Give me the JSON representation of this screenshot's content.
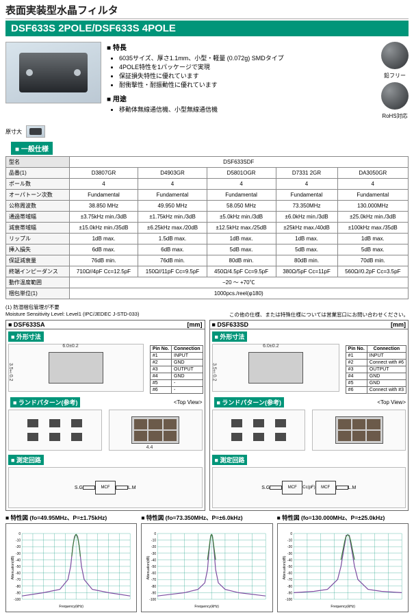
{
  "header": {
    "title_jp": "表面実装型水晶フィルタ",
    "product_bar": "DSF633S 2POLE/DSF633S 4POLE"
  },
  "features": {
    "heading": "■ 特長",
    "items": [
      "6035サイズ、厚さ1.1mm、小型・軽量 (0.072g) SMDタイプ",
      "4POLE特性を1パッケージで実現",
      "保証損失特性に優れています",
      "耐衝撃性・耐振動性に優れています"
    ]
  },
  "applications": {
    "heading": "■ 用途",
    "items": [
      "移動体無線通信機、小型無線通信機"
    ]
  },
  "icons": {
    "leadfree": "鉛フリー",
    "rohs": "RoHS対応"
  },
  "size_ref": "原寸大",
  "spec_section": "■ 一般仕様",
  "spec_table": {
    "model_row_label": "型名",
    "model_span": "DSF633SDF",
    "rows": [
      {
        "label": "品番(1)",
        "cells": [
          "D3807GR",
          "D4903GR",
          "D5801OGR",
          "D7331 2GR",
          "DA3050GR"
        ]
      },
      {
        "label": "ポール数",
        "cells": [
          "4",
          "4",
          "4",
          "4",
          "4"
        ]
      },
      {
        "label": "オーパトーン次数",
        "cells": [
          "Fundamental",
          "Fundamental",
          "Fundamental",
          "Fundamental",
          "Fundamental"
        ]
      },
      {
        "label": "公称周波数",
        "cells": [
          "38.850 MHz",
          "49.950 MHz",
          "58.050 MHz",
          "73.350MHz",
          "130.000MHz"
        ]
      },
      {
        "label": "通過帯域幅",
        "cells": [
          "±3.75kHz min./3dB",
          "±1.75kHz min./3dB",
          "±5.0kHz min./3dB",
          "±6.0kHz min./3dB",
          "±25.0kHz min./3dB"
        ]
      },
      {
        "label": "減衰帯域幅",
        "cells": [
          "±15.0kHz min./35dB",
          "±6.25kHz max./20dB",
          "±12.5kHz max./25dB",
          "±25kHz max./40dB",
          "±100kHz max./35dB"
        ]
      },
      {
        "label": "リップル",
        "cells": [
          "1dB max.",
          "1.5dB max.",
          "1dB max.",
          "1dB max.",
          "1dB max."
        ]
      },
      {
        "label": "挿入損失",
        "cells": [
          "6dB max.",
          "6dB max.",
          "5dB max.",
          "5dB max.",
          "5dB max."
        ]
      },
      {
        "label": "保証減衰量",
        "cells": [
          "76dB min.",
          "76dB min.",
          "80dB min.",
          "80dB min.",
          "70dB min."
        ]
      },
      {
        "label": "終端インピーダンス",
        "cells": [
          "710Ω//4pF Cc=12.5pF",
          "150Ω//11pF Cc=9.5pF",
          "450Ω/4.5pF Cc=9.5pF",
          "380Ω/5pF Cc=11pF",
          "560Ω//0.2pF Cc=3.5pF"
        ]
      },
      {
        "label": "動作温度範囲",
        "cells_merged": "−20 ～ +70℃"
      },
      {
        "label": "梱包単位(1)",
        "cells_merged": "1000pcs./reel(φ180)"
      }
    ]
  },
  "notes": {
    "n1": "(1) 防湿梱包管理が不要",
    "n2": "Moisture Sensitivity Level: Level1 (IPC/JEDEC J-STD-033)",
    "n3": "この他の仕様、または特殊仕様については営業窓口にお問い合わせください。"
  },
  "pkg": {
    "sa": {
      "name": "■ DSF633SA",
      "unit": "[mm]"
    },
    "sd": {
      "name": "■ DSF633SD",
      "unit": "[mm]"
    },
    "outline": "■ 外形寸法",
    "land": "■ ランドパターン(参考)",
    "topview": "<Top View>",
    "meas": "■ 測定回路",
    "dims": {
      "w": "6.0±0.2",
      "h": "3.5±0.2",
      "t": "1.1±0.2",
      "pw": "1.4",
      "ph": "0.9",
      "pg": "4.4"
    },
    "chip_sa": "4081SAR1\\nKDS  701",
    "chip_sd": "3880 7GR1\\nKDS  701",
    "pins_sa": [
      [
        "#1",
        "INPUT"
      ],
      [
        "#2",
        "GND"
      ],
      [
        "#3",
        "OUTPUT"
      ],
      [
        "#4",
        "GND"
      ],
      [
        "#5",
        "-"
      ],
      [
        "#6",
        "-"
      ]
    ],
    "pins_sd": [
      [
        "#1",
        "INPUT"
      ],
      [
        "#2",
        "Connect with #6"
      ],
      [
        "#3",
        "OUTPUT"
      ],
      [
        "#4",
        "GND"
      ],
      [
        "#5",
        "GND"
      ],
      [
        "#6",
        "Connect with #3"
      ]
    ],
    "pinhdr": [
      "Pin No.",
      "Connection"
    ],
    "land_sd_notes": [
      "Connect GND",
      "Coupling Capacitor"
    ],
    "circuit_labels": {
      "mcf": "MCF",
      "sg": "S.G",
      "rs": "R(=50)",
      "ro": "R(Ω)",
      "co": "Co(pF)",
      "lm": "L.M",
      "fifty": "50Ω",
      "cc": "Cc(pF)"
    }
  },
  "charts": {
    "heading": "■ 特性図",
    "ylabel": "Attenuation(dB)",
    "xlabel": "Frequency(kHz)",
    "items": [
      {
        "title": "(fo=49.95MHz、P=±1.75kHz)",
        "subtitle": "<DSF633SDF 49.95MHz D4903GR>",
        "xrange": [
          -100,
          100
        ],
        "xstep": 10,
        "yrange": [
          -100,
          0
        ],
        "ystep": 10,
        "seriesA": [
          [
            -100,
            -95
          ],
          [
            -60,
            -90
          ],
          [
            -30,
            -85
          ],
          [
            -15,
            -70
          ],
          [
            -10,
            -50
          ],
          [
            -6,
            -20
          ],
          [
            -3,
            -5
          ],
          [
            -1.75,
            -3
          ],
          [
            0,
            -2
          ],
          [
            1.75,
            -3
          ],
          [
            3,
            -5
          ],
          [
            6,
            -20
          ],
          [
            10,
            -50
          ],
          [
            15,
            -70
          ],
          [
            30,
            -85
          ],
          [
            60,
            -90
          ],
          [
            100,
            -95
          ]
        ],
        "seriesB": [
          [
            -8,
            -35
          ],
          [
            -6,
            -20
          ],
          [
            -4,
            -10
          ],
          [
            -2,
            -4
          ],
          [
            -1,
            -2
          ],
          [
            0,
            -1.5
          ],
          [
            1,
            -2
          ],
          [
            2,
            -4
          ],
          [
            4,
            -10
          ],
          [
            6,
            -20
          ],
          [
            8,
            -35
          ]
        ],
        "colorA": "#7a4aa0",
        "colorB": "#3a7a3a",
        "grid": "#009579",
        "stroke_w": 1.2
      },
      {
        "title": "(fo=73.350MHz、P=±6.0kHz)",
        "subtitle": "<DSF633SDF 73.350MHz D73312GR>",
        "xrange": [
          -400,
          400
        ],
        "xstep": 50,
        "yrange": [
          -100,
          0
        ],
        "ystep": 10,
        "seriesA": [
          [
            -400,
            -95
          ],
          [
            -200,
            -90
          ],
          [
            -100,
            -85
          ],
          [
            -50,
            -75
          ],
          [
            -30,
            -55
          ],
          [
            -20,
            -30
          ],
          [
            -10,
            -10
          ],
          [
            -6,
            -3
          ],
          [
            0,
            -2
          ],
          [
            6,
            -3
          ],
          [
            10,
            -10
          ],
          [
            20,
            -30
          ],
          [
            30,
            -55
          ],
          [
            50,
            -75
          ],
          [
            100,
            -85
          ],
          [
            200,
            -90
          ],
          [
            400,
            -95
          ]
        ],
        "seriesB": [
          [
            -30,
            -40
          ],
          [
            -20,
            -25
          ],
          [
            -12,
            -12
          ],
          [
            -7,
            -5
          ],
          [
            -3,
            -2
          ],
          [
            0,
            -1.5
          ],
          [
            3,
            -2
          ],
          [
            7,
            -5
          ],
          [
            12,
            -12
          ],
          [
            20,
            -25
          ],
          [
            30,
            -40
          ]
        ],
        "colorA": "#7a4aa0",
        "colorB": "#3a7a3a",
        "grid": "#009579",
        "stroke_w": 1.2
      },
      {
        "title": "(fo=130.000MHz、P=±25.0kHz)",
        "subtitle": "<DSF633SDF 130MHz DA3050GR>",
        "xrange": [
          -800,
          800
        ],
        "xstep": 100,
        "yrange": [
          -100,
          0
        ],
        "ystep": 10,
        "seriesA": [
          [
            -800,
            -90
          ],
          [
            -500,
            -88
          ],
          [
            -300,
            -85
          ],
          [
            -150,
            -70
          ],
          [
            -100,
            -50
          ],
          [
            -60,
            -25
          ],
          [
            -30,
            -8
          ],
          [
            -25,
            -3
          ],
          [
            0,
            -2
          ],
          [
            25,
            -3
          ],
          [
            30,
            -8
          ],
          [
            60,
            -25
          ],
          [
            100,
            -50
          ],
          [
            150,
            -70
          ],
          [
            300,
            -85
          ],
          [
            500,
            -88
          ],
          [
            800,
            -90
          ]
        ],
        "seriesB": [
          [
            -100,
            -40
          ],
          [
            -70,
            -25
          ],
          [
            -45,
            -12
          ],
          [
            -30,
            -6
          ],
          [
            -15,
            -3
          ],
          [
            0,
            -2
          ],
          [
            15,
            -3
          ],
          [
            30,
            -6
          ],
          [
            45,
            -12
          ],
          [
            70,
            -25
          ],
          [
            100,
            -40
          ]
        ],
        "colorA": "#7a4aa0",
        "colorB": "#3a7a3a",
        "grid": "#009579",
        "stroke_w": 1.2
      }
    ]
  }
}
